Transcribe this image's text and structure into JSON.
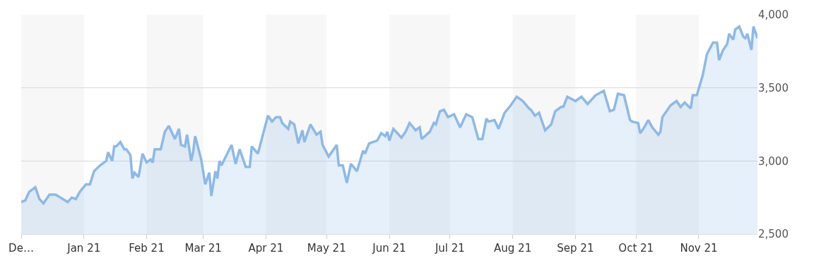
{
  "chart_data": {
    "type": "area",
    "x": [
      "2020-12-01",
      "2020-12-03",
      "2020-12-05",
      "2020-12-08",
      "2020-12-10",
      "2020-12-12",
      "2020-12-15",
      "2020-12-18",
      "2020-12-24",
      "2020-12-26",
      "2020-12-28",
      "2020-12-30",
      "2021-01-02",
      "2021-01-04",
      "2021-01-06",
      "2021-01-09",
      "2021-01-12",
      "2021-01-13",
      "2021-01-15",
      "2021-01-16",
      "2021-01-17",
      "2021-01-19",
      "2021-01-21",
      "2021-01-22",
      "2021-01-24",
      "2021-01-25",
      "2021-01-26",
      "2021-01-28",
      "2021-01-30",
      "2021-02-01",
      "2021-02-03",
      "2021-02-04",
      "2021-02-05",
      "2021-02-08",
      "2021-02-10",
      "2021-02-12",
      "2021-02-15",
      "2021-02-17",
      "2021-02-18",
      "2021-02-20",
      "2021-02-21",
      "2021-02-23",
      "2021-02-24",
      "2021-02-25",
      "2021-02-28",
      "2021-03-02",
      "2021-03-04",
      "2021-03-05",
      "2021-03-07",
      "2021-03-08",
      "2021-03-09",
      "2021-03-10",
      "2021-03-15",
      "2021-03-17",
      "2021-03-19",
      "2021-03-22",
      "2021-03-24",
      "2021-03-25",
      "2021-03-28",
      "2021-04-02",
      "2021-04-04",
      "2021-04-06",
      "2021-04-08",
      "2021-04-09",
      "2021-04-12",
      "2021-04-13",
      "2021-04-15",
      "2021-04-17",
      "2021-04-19",
      "2021-04-20",
      "2021-04-23",
      "2021-04-26",
      "2021-04-28",
      "2021-04-29",
      "2021-05-02",
      "2021-05-06",
      "2021-05-07",
      "2021-05-09",
      "2021-05-11",
      "2021-05-13",
      "2021-05-16",
      "2021-05-19",
      "2021-05-20",
      "2021-05-22",
      "2021-05-26",
      "2021-05-28",
      "2021-05-30",
      "2021-05-31",
      "2021-06-01",
      "2021-06-03",
      "2021-06-07",
      "2021-06-09",
      "2021-06-11",
      "2021-06-14",
      "2021-06-16",
      "2021-06-17",
      "2021-06-21",
      "2021-06-23",
      "2021-06-24",
      "2021-06-26",
      "2021-06-28",
      "2021-06-30",
      "2021-07-03",
      "2021-07-06",
      "2021-07-09",
      "2021-07-12",
      "2021-07-15",
      "2021-07-17",
      "2021-07-19",
      "2021-07-20",
      "2021-07-23",
      "2021-07-25",
      "2021-07-28",
      "2021-07-31",
      "2021-08-03",
      "2021-08-06",
      "2021-08-09",
      "2021-08-10",
      "2021-08-12",
      "2021-08-14",
      "2021-08-17",
      "2021-08-20",
      "2021-08-22",
      "2021-08-25",
      "2021-08-26",
      "2021-08-28",
      "2021-09-01",
      "2021-09-04",
      "2021-09-07",
      "2021-09-11",
      "2021-09-15",
      "2021-09-18",
      "2021-09-20",
      "2021-09-22",
      "2021-09-25",
      "2021-09-28",
      "2021-09-29",
      "2021-10-02",
      "2021-10-03",
      "2021-10-05",
      "2021-10-07",
      "2021-10-09",
      "2021-10-12",
      "2021-10-13",
      "2021-10-14",
      "2021-10-18",
      "2021-10-19",
      "2021-10-21",
      "2021-10-23",
      "2021-10-25",
      "2021-10-28",
      "2021-10-29",
      "2021-10-31",
      "2021-11-03",
      "2021-11-05",
      "2021-11-08",
      "2021-11-10",
      "2021-11-11",
      "2021-11-13",
      "2021-11-15",
      "2021-11-16",
      "2021-11-18",
      "2021-11-19",
      "2021-11-21",
      "2021-11-23",
      "2021-11-24",
      "2021-11-25",
      "2021-11-27",
      "2021-11-28",
      "2021-11-30"
    ],
    "series": [
      {
        "color": "#8db9e6",
        "values": [
          2720,
          2730,
          2790,
          2820,
          2740,
          2710,
          2770,
          2770,
          2720,
          2750,
          2740,
          2790,
          2840,
          2840,
          2930,
          2970,
          3000,
          3060,
          3000,
          3100,
          3100,
          3130,
          3080,
          3080,
          3040,
          2880,
          2920,
          2890,
          3050,
          2990,
          3010,
          2990,
          3080,
          3080,
          3200,
          3240,
          3150,
          3220,
          3110,
          3100,
          3180,
          3000,
          3060,
          3170,
          3010,
          2840,
          2920,
          2760,
          2930,
          2880,
          3000,
          2970,
          3110,
          2980,
          3080,
          2960,
          2960,
          3100,
          3050,
          3310,
          3270,
          3300,
          3300,
          3260,
          3220,
          3270,
          3250,
          3120,
          3210,
          3130,
          3250,
          3180,
          3200,
          3110,
          3030,
          3110,
          2970,
          2970,
          2850,
          2980,
          2930,
          3070,
          3050,
          3120,
          3140,
          3190,
          3170,
          3200,
          3140,
          3220,
          3160,
          3200,
          3260,
          3210,
          3230,
          3150,
          3200,
          3260,
          3250,
          3340,
          3350,
          3300,
          3320,
          3230,
          3320,
          3300,
          3150,
          3150,
          3290,
          3270,
          3280,
          3220,
          3330,
          3380,
          3440,
          3410,
          3360,
          3350,
          3310,
          3330,
          3210,
          3250,
          3340,
          3370,
          3370,
          3440,
          3410,
          3440,
          3390,
          3450,
          3480,
          3340,
          3350,
          3460,
          3450,
          3280,
          3270,
          3260,
          3190,
          3230,
          3280,
          3230,
          3180,
          3200,
          3300,
          3380,
          3390,
          3410,
          3370,
          3400,
          3360,
          3450,
          3450,
          3590,
          3730,
          3810,
          3810,
          3690,
          3760,
          3800,
          3870,
          3830,
          3900,
          3920,
          3850,
          3840,
          3870,
          3760,
          3920,
          3840
        ]
      }
    ],
    "xlim": [
      "2020-12-01",
      "2021-11-30"
    ],
    "xticks": [
      {
        "value": "2020-12-01",
        "label": "De…"
      },
      {
        "value": "2021-01-01",
        "label": "Jan 21"
      },
      {
        "value": "2021-02-01",
        "label": "Feb 21"
      },
      {
        "value": "2021-03-01",
        "label": "Mar 21"
      },
      {
        "value": "2021-04-01",
        "label": "Apr 21"
      },
      {
        "value": "2021-05-01",
        "label": "May 21"
      },
      {
        "value": "2021-06-01",
        "label": "Jun 21"
      },
      {
        "value": "2021-07-01",
        "label": "Jul 21"
      },
      {
        "value": "2021-08-01",
        "label": "Aug 21"
      },
      {
        "value": "2021-09-01",
        "label": "Sep 21"
      },
      {
        "value": "2021-10-01",
        "label": "Oct 21"
      },
      {
        "value": "2021-11-01",
        "label": "Nov 21"
      }
    ],
    "ylim": [
      2500,
      4000
    ],
    "yticks": [
      {
        "value": 2500,
        "label": "2,500"
      },
      {
        "value": 3000,
        "label": "3,000"
      },
      {
        "value": 3500,
        "label": "3,500"
      },
      {
        "value": 4000,
        "label": "4,000"
      }
    ],
    "bands": [
      {
        "axis": "x",
        "from": "2020-12-01",
        "to": "2021-01-01",
        "color": "#f7f7f7"
      },
      {
        "axis": "x",
        "from": "2021-02-01",
        "to": "2021-03-01",
        "color": "#f7f7f7"
      },
      {
        "axis": "x",
        "from": "2021-04-01",
        "to": "2021-05-01",
        "color": "#f7f7f7"
      },
      {
        "axis": "x",
        "from": "2021-06-01",
        "to": "2021-07-01",
        "color": "#f7f7f7"
      },
      {
        "axis": "x",
        "from": "2021-08-01",
        "to": "2021-09-01",
        "color": "#f7f7f7"
      },
      {
        "axis": "x",
        "from": "2021-10-01",
        "to": "2021-11-01",
        "color": "#f7f7f7"
      }
    ],
    "grid": "y",
    "marker": "none",
    "line_style": "solid"
  }
}
